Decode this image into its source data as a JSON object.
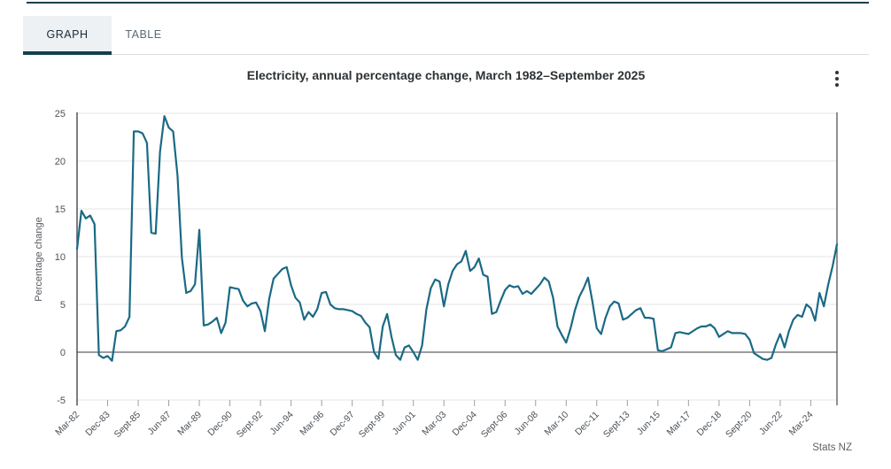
{
  "tabs": {
    "graph_label": "GRAPH",
    "table_label": "TABLE"
  },
  "header": {
    "title": "Electricity, annual percentage change, March 1982–September 2025"
  },
  "menu": {
    "icon": "kebab-menu-icon"
  },
  "footer": {
    "source": "Stats NZ"
  },
  "colors": {
    "line": "#1a6a85",
    "active_tab_underline": "#123f4f",
    "top_rule": "#1c3f4e",
    "grid": "#e4e5e6",
    "zero_line": "#9b9da0",
    "axis": "#45484a",
    "tick_text": "#4b5157"
  },
  "chart_data": {
    "type": "line",
    "title": "Electricity, annual percentage change, March 1982–September 2025",
    "xlabel": "",
    "ylabel": "Percentage change",
    "ylim": [
      -5,
      25
    ],
    "grid": "horizontal",
    "zero_line": true,
    "frequency": "quarterly",
    "x_start": "Mar-82",
    "x_end": "Sept-25",
    "y_ticks": [
      25,
      20,
      15,
      10,
      5,
      0,
      -5
    ],
    "x_tick_labels": [
      "Mar-82",
      "Dec-83",
      "Sept-85",
      "Jun-87",
      "Mar-89",
      "Dec-90",
      "Sept-92",
      "Jun-94",
      "Mar-96",
      "Dec-97",
      "Sept-99",
      "Jun-01",
      "Mar-03",
      "Dec-04",
      "Sept-06",
      "Jun-08",
      "Mar-10",
      "Dec-11",
      "Sept-13",
      "Jun-15",
      "Mar-17",
      "Dec-18",
      "Sept-20",
      "Jun-22",
      "Mar-24"
    ],
    "x_ticks_every_n_quarters": 7,
    "series": [
      {
        "name": "Electricity, annual percentage change",
        "color": "#1a6a85",
        "values": [
          10.8,
          14.8,
          14.0,
          14.3,
          13.4,
          -0.3,
          -0.6,
          -0.4,
          -0.9,
          2.2,
          2.3,
          2.7,
          3.7,
          23.1,
          23.1,
          22.9,
          21.9,
          12.5,
          12.4,
          21.0,
          24.7,
          23.5,
          23.1,
          18.5,
          9.9,
          6.2,
          6.4,
          7.1,
          12.8,
          2.8,
          2.9,
          3.2,
          3.6,
          2.0,
          3.1,
          6.8,
          6.7,
          6.6,
          5.4,
          4.8,
          5.1,
          5.2,
          4.3,
          2.2,
          5.6,
          7.7,
          8.2,
          8.7,
          8.9,
          7.0,
          5.7,
          5.2,
          3.4,
          4.2,
          3.7,
          4.5,
          6.2,
          6.3,
          5.0,
          4.6,
          4.5,
          4.5,
          4.4,
          4.3,
          4.0,
          3.8,
          3.1,
          2.6,
          0.0,
          -0.7,
          2.7,
          4.0,
          1.6,
          -0.3,
          -0.8,
          0.5,
          0.7,
          0.0,
          -0.8,
          0.7,
          4.5,
          6.7,
          7.6,
          7.4,
          4.8,
          7.1,
          8.5,
          9.2,
          9.5,
          10.6,
          8.5,
          8.9,
          9.8,
          8.1,
          7.9,
          4.0,
          4.2,
          5.4,
          6.5,
          7.0,
          6.8,
          6.9,
          6.1,
          6.4,
          6.1,
          6.6,
          7.1,
          7.8,
          7.4,
          5.7,
          2.7,
          1.8,
          1.0,
          2.5,
          4.4,
          5.8,
          6.7,
          7.8,
          5.3,
          2.5,
          1.9,
          3.6,
          4.8,
          5.3,
          5.1,
          3.4,
          3.6,
          4.0,
          4.4,
          4.6,
          3.6,
          3.6,
          3.5,
          0.2,
          0.1,
          0.3,
          0.5,
          2.0,
          2.1,
          2.0,
          1.9,
          2.2,
          2.5,
          2.7,
          2.7,
          2.9,
          2.5,
          1.6,
          1.9,
          2.2,
          2.0,
          2.0,
          2.0,
          1.9,
          1.3,
          -0.1,
          -0.4,
          -0.7,
          -0.8,
          -0.6,
          0.8,
          1.9,
          0.5,
          2.2,
          3.4,
          3.9,
          3.7,
          5.0,
          4.6,
          3.3,
          6.2,
          4.8,
          7.1,
          9.0,
          11.3
        ]
      }
    ],
    "legend_position": "none"
  }
}
